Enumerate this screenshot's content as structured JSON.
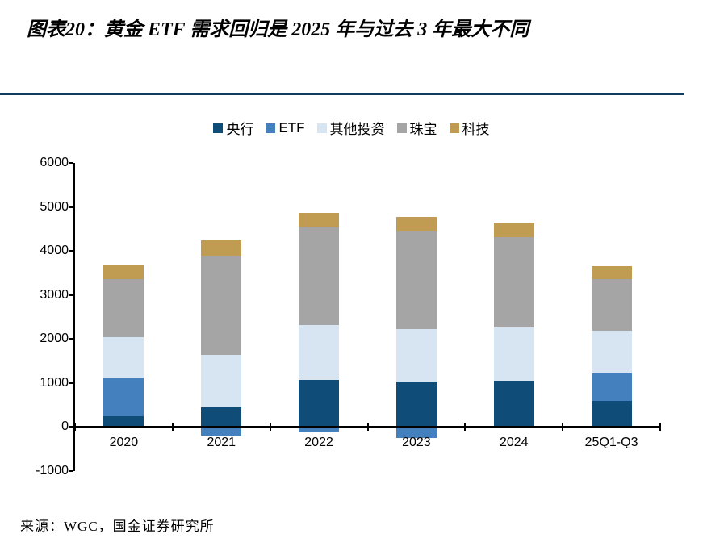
{
  "header": {
    "title": "图表20：黄金 ETF 需求回归是 2025 年与过去 3 年最大不同"
  },
  "source": "来源：WGC，国金证券研究所",
  "colors": {
    "title_rule": "#103C5F",
    "axis": "#000000"
  },
  "chart_data": {
    "type": "bar",
    "stacked": true,
    "title": "图表20：黄金 ETF 需求回归是 2025 年与过去 3 年最大不同",
    "categories": [
      "2020",
      "2021",
      "2022",
      "2023",
      "2024",
      "25Q1-Q3"
    ],
    "series": [
      {
        "name": "央行",
        "color": "#0F4C78",
        "values": [
          250,
          440,
          1070,
          1030,
          1050,
          590
        ]
      },
      {
        "name": "ETF",
        "color": "#4580BE",
        "values": [
          880,
          -190,
          -120,
          -245,
          0,
          630
        ]
      },
      {
        "name": "其他投资",
        "color": "#D7E5F2",
        "values": [
          920,
          1190,
          1250,
          1200,
          1210,
          960
        ]
      },
      {
        "name": "珠宝",
        "color": "#A5A5A5",
        "values": [
          1320,
          2260,
          2210,
          2230,
          2050,
          1190
        ]
      },
      {
        "name": "科技",
        "color": "#C09C52",
        "values": [
          330,
          360,
          330,
          320,
          340,
          280
        ]
      }
    ],
    "xlabel": "",
    "ylabel": "",
    "ylim": [
      -1000,
      6000
    ],
    "yticks": [
      -1000,
      0,
      1000,
      2000,
      3000,
      4000,
      5000,
      6000
    ],
    "legend_position": "top",
    "grid": false
  }
}
